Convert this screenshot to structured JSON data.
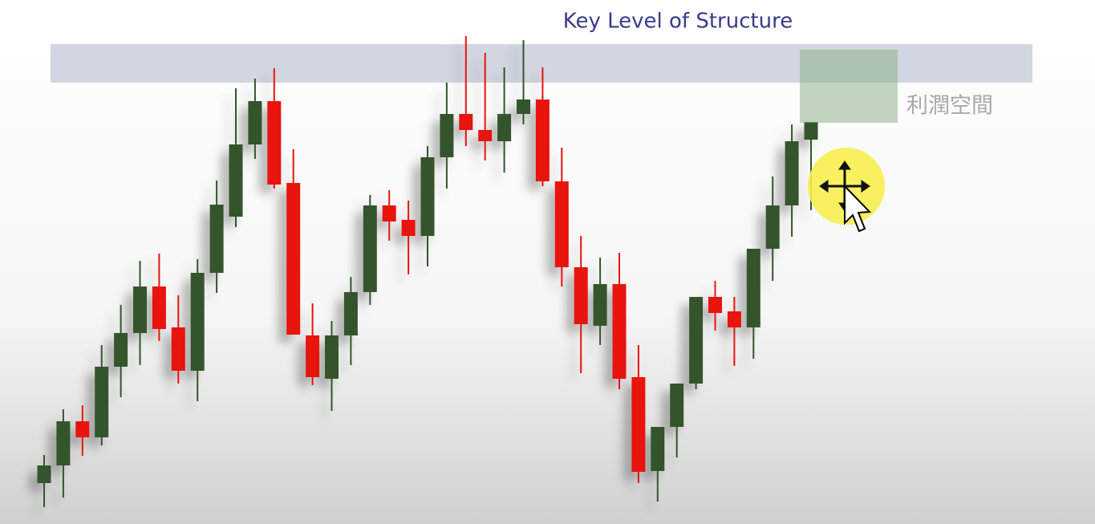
{
  "chart_data": {
    "type": "candlestick",
    "annotations": [
      "Key Level of Structure",
      "利潤空間"
    ],
    "up_color": "#34552c",
    "down_color": "#e8140e",
    "ylim": [
      0,
      653
    ],
    "open": [
      51,
      73,
      128,
      108,
      196,
      238,
      296,
      245,
      191,
      313,
      383,
      473,
      527,
      425,
      235,
      181,
      235,
      289,
      397,
      379,
      359,
      457,
      511,
      491,
      477,
      511,
      529,
      427,
      320,
      247,
      299,
      183,
      66,
      121,
      175,
      283,
      265,
      245,
      343,
      397,
      479
    ],
    "high": [
      86,
      143,
      148,
      223,
      273,
      328,
      337,
      285,
      330,
      428,
      543,
      555,
      568,
      467,
      275,
      253,
      308,
      410,
      416,
      403,
      471,
      550,
      608,
      587,
      569,
      603,
      569,
      469,
      359,
      332,
      338,
      223,
      121,
      175,
      283,
      303,
      283,
      343,
      433,
      498,
      501
    ],
    "low": [
      21,
      33,
      85,
      98,
      158,
      198,
      228,
      175,
      153,
      288,
      370,
      455,
      418,
      236,
      173,
      141,
      198,
      273,
      353,
      311,
      321,
      418,
      471,
      453,
      438,
      498,
      421,
      296,
      188,
      223,
      168,
      51,
      28,
      83,
      168,
      241,
      197,
      206,
      303,
      358,
      391
    ],
    "close": [
      73,
      128,
      108,
      196,
      238,
      296,
      243,
      191,
      313,
      398,
      473,
      527,
      423,
      236,
      183,
      235,
      289,
      397,
      377,
      359,
      457,
      511,
      491,
      477,
      511,
      529,
      427,
      320,
      249,
      299,
      181,
      65,
      121,
      175,
      283,
      263,
      245,
      343,
      397,
      477,
      501
    ]
  }
}
